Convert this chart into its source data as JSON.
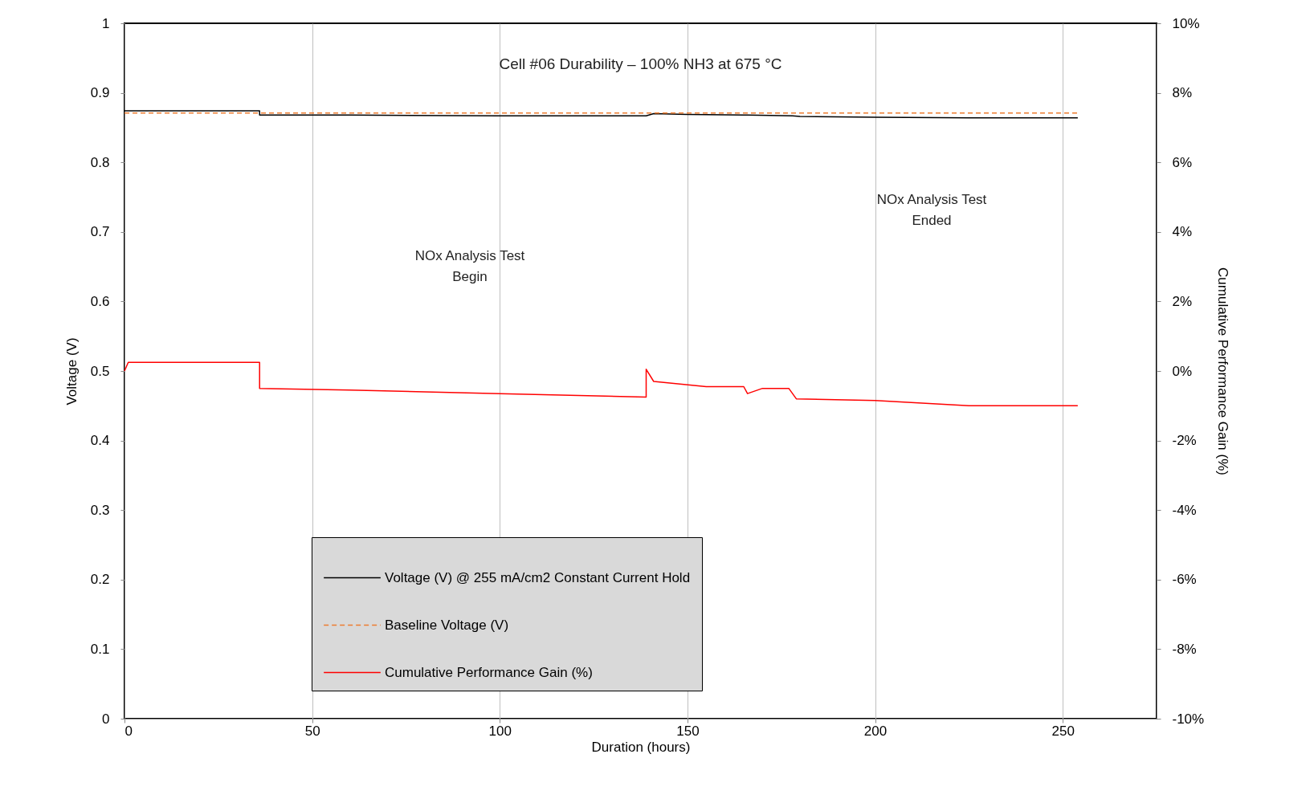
{
  "chart_data": {
    "type": "line",
    "title": "Cell #06 Durability – 100% NH3 at 675 °C",
    "xlabel": "Duration (hours)",
    "ylabel": "Voltage (V)",
    "y2label": "Cumulative Performance Gain (%)",
    "xlim": [
      0,
      275
    ],
    "xticks": [
      0,
      50,
      100,
      150,
      200,
      250
    ],
    "ylim": [
      0,
      1
    ],
    "yticks": [
      0,
      0.1,
      0.2,
      0.3,
      0.4,
      0.5,
      0.6,
      0.7,
      0.8,
      0.9,
      1
    ],
    "y2lim": [
      -10,
      10
    ],
    "y2ticks": [
      {
        "value": -10,
        "label": "-10%"
      },
      {
        "value": -8,
        "label": "-8%"
      },
      {
        "value": -6,
        "label": "-6%"
      },
      {
        "value": -4,
        "label": "-4%"
      },
      {
        "value": -2,
        "label": "-2%"
      },
      {
        "value": 0,
        "label": "0%"
      },
      {
        "value": 2,
        "label": "2%"
      },
      {
        "value": 4,
        "label": "4%"
      },
      {
        "value": 6,
        "label": "6%"
      },
      {
        "value": 8,
        "label": "8%"
      },
      {
        "value": 10,
        "label": "10%"
      }
    ],
    "grid": "x",
    "legend": "bottom",
    "series": [
      {
        "name": "Voltage (V) @ 255 mA/cm2 Constant Current Hold",
        "color": "#000000",
        "line_style": "solid",
        "x": [
          0,
          36,
          36,
          60,
          100,
          139,
          141,
          150,
          165,
          166,
          178,
          180,
          200,
          225,
          254
        ],
        "values": [
          0.874,
          0.874,
          0.868,
          0.868,
          0.867,
          0.867,
          0.87,
          0.869,
          0.868,
          0.868,
          0.867,
          0.866,
          0.865,
          0.864,
          0.864
        ]
      },
      {
        "name": "Baseline Voltage (V)",
        "color": "#ed7d31",
        "line_style": "dashed",
        "x": [
          0,
          254
        ],
        "values": [
          0.871,
          0.871
        ]
      },
      {
        "name": "Cumulative Performance Gain (%)",
        "color": "#ff0000",
        "line_style": "solid",
        "axis": "y2",
        "x": [
          0,
          1,
          36,
          36,
          60,
          100,
          139,
          139,
          141,
          155,
          165,
          166,
          170,
          177,
          179,
          200,
          225,
          254
        ],
        "values": [
          0,
          0.25,
          0.25,
          -0.5,
          -0.55,
          -0.65,
          -0.75,
          0.05,
          -0.3,
          -0.45,
          -0.45,
          -0.65,
          -0.5,
          -0.5,
          -0.8,
          -0.85,
          -1.0,
          -1.0
        ]
      }
    ],
    "annotations": [
      "NOx Analysis Test Begin",
      "NOx Analysis Test Ended"
    ]
  }
}
